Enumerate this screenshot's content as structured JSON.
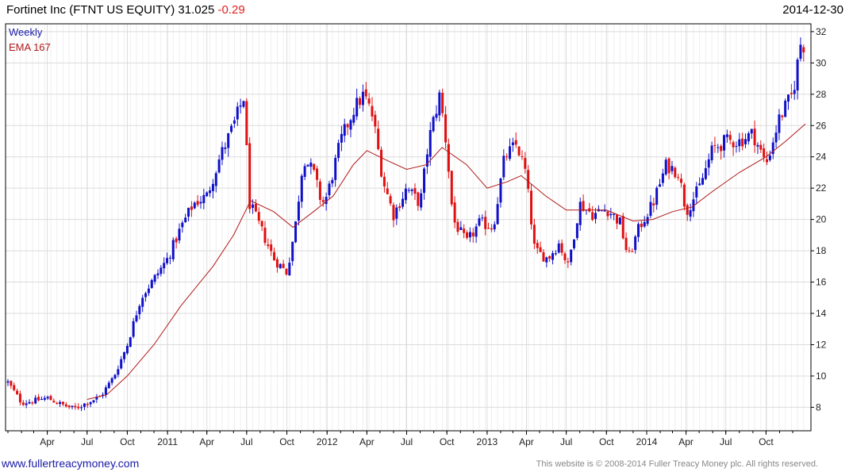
{
  "header": {
    "title": "Fortinet Inc (FTNT US EQUITY) 31.025",
    "change": "-0.29",
    "date": "2014-12-30"
  },
  "footer": {
    "url": "www.fullertreacymoney.com",
    "copyright": "This website is © 2008-2014 Fuller Treacy Money plc. All rights reserved."
  },
  "colors": {
    "up": "#1010c8",
    "down": "#e01010",
    "ema": "#b01818",
    "grid": "#dcdcdc",
    "frame": "#000000"
  },
  "chart_data": {
    "type": "candlestick",
    "period": "Weekly",
    "indicator": "EMA 167",
    "legend_position": "top-left",
    "grid": true,
    "y_axis_side": "right",
    "ylim": [
      6.5,
      32.5
    ],
    "y_ticks": [
      8,
      10,
      12,
      14,
      16,
      18,
      20,
      22,
      24,
      26,
      28,
      30,
      32
    ],
    "xlim": [
      "2010-01-01",
      "2014-12-30"
    ],
    "x_ticks": [
      {
        "date": "2010-04-01",
        "label": "Apr"
      },
      {
        "date": "2010-07-01",
        "label": "Jul"
      },
      {
        "date": "2010-10-01",
        "label": "Oct"
      },
      {
        "date": "2011-01-01",
        "label": "2011"
      },
      {
        "date": "2011-04-01",
        "label": "Apr"
      },
      {
        "date": "2011-07-01",
        "label": "Jul"
      },
      {
        "date": "2011-10-01",
        "label": "Oct"
      },
      {
        "date": "2012-01-01",
        "label": "2012"
      },
      {
        "date": "2012-04-01",
        "label": "Apr"
      },
      {
        "date": "2012-07-01",
        "label": "Jul"
      },
      {
        "date": "2012-10-01",
        "label": "Oct"
      },
      {
        "date": "2013-01-01",
        "label": "2013"
      },
      {
        "date": "2013-04-01",
        "label": "Apr"
      },
      {
        "date": "2013-07-01",
        "label": "Jul"
      },
      {
        "date": "2013-10-01",
        "label": "Oct"
      },
      {
        "date": "2014-01-01",
        "label": "2014"
      },
      {
        "date": "2014-04-01",
        "label": "Apr"
      },
      {
        "date": "2014-07-01",
        "label": "Jul"
      },
      {
        "date": "2014-10-01",
        "label": "Oct"
      }
    ],
    "price_path": [
      [
        "2010-01-01",
        9.6
      ],
      [
        "2010-02-01",
        8.3
      ],
      [
        "2010-03-01",
        8.4
      ],
      [
        "2010-04-01",
        8.6
      ],
      [
        "2010-05-01",
        8.2
      ],
      [
        "2010-06-01",
        7.9
      ],
      [
        "2010-07-01",
        8.3
      ],
      [
        "2010-08-01",
        8.7
      ],
      [
        "2010-09-01",
        10.0
      ],
      [
        "2010-10-01",
        12.0
      ],
      [
        "2010-11-01",
        15.0
      ],
      [
        "2010-12-01",
        16.2
      ],
      [
        "2011-01-01",
        17.5
      ],
      [
        "2011-02-01",
        19.5
      ],
      [
        "2011-03-01",
        21.0
      ],
      [
        "2011-04-01",
        21.5
      ],
      [
        "2011-05-01",
        24.0
      ],
      [
        "2011-06-01",
        26.0
      ],
      [
        "2011-06-24",
        27.8
      ],
      [
        "2011-07-08",
        21.0
      ],
      [
        "2011-08-01",
        19.5
      ],
      [
        "2011-09-01",
        17.5
      ],
      [
        "2011-10-01",
        16.6
      ],
      [
        "2011-10-20",
        19.5
      ],
      [
        "2011-11-08",
        24.0
      ],
      [
        "2011-12-01",
        23.0
      ],
      [
        "2011-12-20",
        21.0
      ],
      [
        "2012-01-01",
        21.5
      ],
      [
        "2012-02-01",
        25.0
      ],
      [
        "2012-03-01",
        27.0
      ],
      [
        "2012-03-25",
        28.0
      ],
      [
        "2012-04-15",
        26.5
      ],
      [
        "2012-05-08",
        22.5
      ],
      [
        "2012-06-01",
        20.3
      ],
      [
        "2012-07-01",
        22.0
      ],
      [
        "2012-08-01",
        21.0
      ],
      [
        "2012-08-20",
        25.0
      ],
      [
        "2012-09-15",
        28.0
      ],
      [
        "2012-10-01",
        24.5
      ],
      [
        "2012-10-15",
        20.0
      ],
      [
        "2012-11-15",
        18.5
      ],
      [
        "2012-12-15",
        19.8
      ],
      [
        "2013-01-15",
        19.5
      ],
      [
        "2013-02-10",
        24.0
      ],
      [
        "2013-03-10",
        24.8
      ],
      [
        "2013-03-30",
        23.0
      ],
      [
        "2013-04-20",
        18.0
      ],
      [
        "2013-05-20",
        17.5
      ],
      [
        "2013-06-15",
        18.5
      ],
      [
        "2013-07-05",
        17.0
      ],
      [
        "2013-08-01",
        21.0
      ],
      [
        "2013-09-01",
        20.3
      ],
      [
        "2013-10-01",
        20.7
      ],
      [
        "2013-11-01",
        19.8
      ],
      [
        "2013-11-20",
        17.5
      ],
      [
        "2013-12-15",
        19.5
      ],
      [
        "2014-01-15",
        21.0
      ],
      [
        "2014-02-15",
        23.5
      ],
      [
        "2014-03-15",
        23.0
      ],
      [
        "2014-04-01",
        20.5
      ],
      [
        "2014-05-01",
        22.0
      ],
      [
        "2014-06-01",
        24.5
      ],
      [
        "2014-07-01",
        25.0
      ],
      [
        "2014-08-01",
        25.0
      ],
      [
        "2014-09-01",
        25.5
      ],
      [
        "2014-10-01",
        23.5
      ],
      [
        "2014-11-01",
        26.5
      ],
      [
        "2014-12-01",
        28.0
      ],
      [
        "2014-12-20",
        31.4
      ],
      [
        "2014-12-30",
        31.0
      ]
    ],
    "ema_path": [
      [
        "2010-07-01",
        8.5
      ],
      [
        "2010-08-15",
        8.8
      ],
      [
        "2010-10-01",
        10.0
      ],
      [
        "2010-12-01",
        12.0
      ],
      [
        "2011-02-01",
        14.5
      ],
      [
        "2011-04-15",
        17.0
      ],
      [
        "2011-06-01",
        19.0
      ],
      [
        "2011-07-10",
        21.2
      ],
      [
        "2011-09-01",
        20.5
      ],
      [
        "2011-10-15",
        19.5
      ],
      [
        "2011-12-01",
        20.5
      ],
      [
        "2012-01-15",
        21.5
      ],
      [
        "2012-03-01",
        23.5
      ],
      [
        "2012-04-01",
        24.4
      ],
      [
        "2012-05-15",
        23.8
      ],
      [
        "2012-07-01",
        23.2
      ],
      [
        "2012-08-15",
        23.5
      ],
      [
        "2012-09-20",
        24.6
      ],
      [
        "2012-11-15",
        23.5
      ],
      [
        "2013-01-01",
        22.0
      ],
      [
        "2013-02-15",
        22.4
      ],
      [
        "2013-03-20",
        22.8
      ],
      [
        "2013-05-15",
        21.5
      ],
      [
        "2013-07-01",
        20.6
      ],
      [
        "2013-08-15",
        20.6
      ],
      [
        "2013-10-01",
        20.6
      ],
      [
        "2013-12-01",
        19.9
      ],
      [
        "2014-01-15",
        20.0
      ],
      [
        "2014-03-01",
        20.5
      ],
      [
        "2014-04-15",
        20.8
      ],
      [
        "2014-06-01",
        21.8
      ],
      [
        "2014-08-01",
        23.0
      ],
      [
        "2014-10-01",
        24.0
      ],
      [
        "2014-11-15",
        25.0
      ],
      [
        "2014-12-30",
        26.1
      ]
    ]
  }
}
